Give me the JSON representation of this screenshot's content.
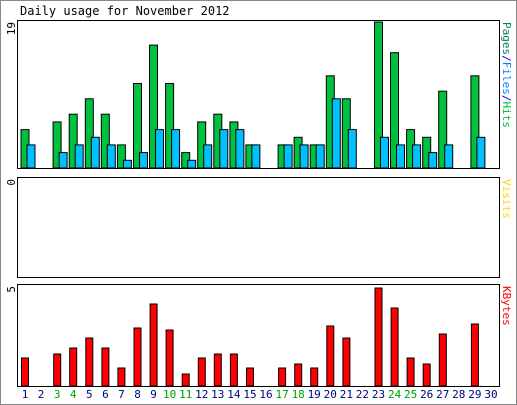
{
  "chart_data": {
    "type": "bar",
    "title": "Daily usage for November 2012",
    "days": [
      "1",
      "2",
      "3",
      "4",
      "5",
      "6",
      "7",
      "8",
      "9",
      "10",
      "11",
      "12",
      "13",
      "14",
      "15",
      "16",
      "17",
      "18",
      "19",
      "20",
      "21",
      "22",
      "23",
      "24",
      "25",
      "26",
      "27",
      "28",
      "29",
      "30"
    ],
    "weekend_days": [
      "3",
      "4",
      "10",
      "11",
      "17",
      "18",
      "24",
      "25"
    ],
    "panels": [
      {
        "name": "hits-files-pages",
        "ymax_label": "19",
        "ymax": 19,
        "legend": [
          {
            "text": "Pages",
            "color": "#00805c"
          },
          {
            "text": "/",
            "color": "#0000ff"
          },
          {
            "text": "Files",
            "color": "#0080ff"
          },
          {
            "text": "/",
            "color": "#0000ff"
          },
          {
            "text": "Hits",
            "color": "#00c040"
          }
        ],
        "series": [
          {
            "name": "Hits",
            "color": "#00c040",
            "values": [
              5,
              0,
              6,
              7,
              9,
              7,
              3,
              11,
              16,
              11,
              2,
              6,
              7,
              6,
              3,
              0,
              3,
              4,
              3,
              12,
              9,
              0,
              19,
              15,
              5,
              4,
              10,
              0,
              12,
              0
            ]
          },
          {
            "name": "Files",
            "color": "#00c0ff",
            "values": [
              3,
              0,
              2,
              3,
              4,
              3,
              1,
              2,
              5,
              5,
              1,
              3,
              5,
              5,
              3,
              0,
              3,
              3,
              3,
              9,
              5,
              0,
              4,
              3,
              3,
              2,
              3,
              0,
              4,
              0
            ]
          }
        ]
      },
      {
        "name": "visits",
        "ymax_label": "0",
        "ymax": 0,
        "legend": [
          {
            "text": "Visits",
            "color": "#ffd700"
          }
        ],
        "series": [
          {
            "name": "Visits",
            "color": "#ffd700",
            "values": [
              0,
              0,
              0,
              0,
              0,
              0,
              0,
              0,
              0,
              0,
              0,
              0,
              0,
              0,
              0,
              0,
              0,
              0,
              0,
              0,
              0,
              0,
              0,
              0,
              0,
              0,
              0,
              0,
              0,
              0
            ]
          }
        ]
      },
      {
        "name": "kbytes",
        "ymax_label": "5",
        "ymax": 5,
        "legend": [
          {
            "text": "KBytes",
            "color": "#ff0000"
          }
        ],
        "series": [
          {
            "name": "KBytes",
            "color": "#ff0000",
            "values": [
              1.4,
              0,
              1.6,
              1.9,
              2.4,
              1.9,
              0.9,
              2.9,
              4.1,
              2.8,
              0.6,
              1.4,
              1.6,
              1.6,
              0.9,
              0,
              0.9,
              1.1,
              0.9,
              3.0,
              2.4,
              0,
              4.9,
              3.9,
              1.4,
              1.1,
              2.6,
              0,
              3.1,
              0
            ]
          }
        ]
      }
    ]
  },
  "colors": {
    "background": "#ffffff",
    "panel_border": "#000000",
    "bar_outline": "#000000",
    "weekday_label": "#000080",
    "weekend_label": "#00a000"
  }
}
